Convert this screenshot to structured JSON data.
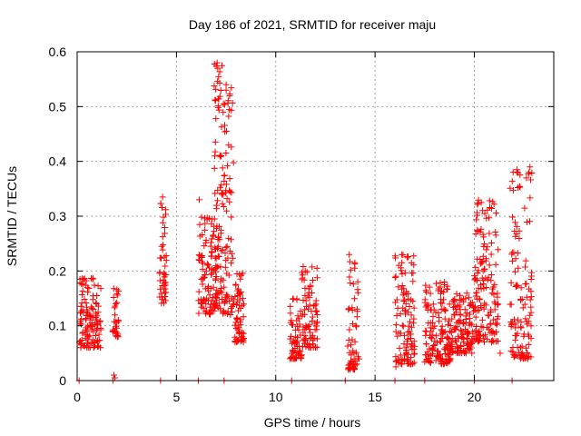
{
  "chart_data": {
    "type": "scatter",
    "title": "Day 186 of 2021, SRMTID for receiver maju",
    "xlabel": "GPS time / hours",
    "ylabel": "SRMTID / TECUs",
    "xlim": [
      0,
      24
    ],
    "ylim": [
      0,
      0.6
    ],
    "xticks": [
      "0",
      "5",
      "10",
      "15",
      "20"
    ],
    "yticks": [
      "0",
      "0.1",
      "0.2",
      "0.3",
      "0.4",
      "0.5",
      "0.6"
    ],
    "grid": true,
    "marker": "+",
    "color": "#ff0000",
    "series": [
      {
        "name": "SRMTID",
        "clusters": [
          {
            "x": [
              0.1,
              1.2
            ],
            "y": [
              0.06,
              0.19
            ],
            "n": 120
          },
          {
            "x": [
              1.75,
              2.1
            ],
            "y": [
              0.08,
              0.17
            ],
            "n": 30
          },
          {
            "x": [
              4.15,
              4.5
            ],
            "y": [
              0.14,
              0.33
            ],
            "n": 45
          },
          {
            "x": [
              6.1,
              6.9
            ],
            "y": [
              0.12,
              0.3
            ],
            "n": 90
          },
          {
            "x": [
              6.9,
              7.3
            ],
            "y": [
              0.13,
              0.58
            ],
            "n": 90
          },
          {
            "x": [
              7.3,
              7.9
            ],
            "y": [
              0.12,
              0.54
            ],
            "n": 80
          },
          {
            "x": [
              7.9,
              8.4
            ],
            "y": [
              0.07,
              0.2
            ],
            "n": 60
          },
          {
            "x": [
              10.7,
              11.3
            ],
            "y": [
              0.04,
              0.15
            ],
            "n": 60
          },
          {
            "x": [
              11.3,
              12.1
            ],
            "y": [
              0.06,
              0.21
            ],
            "n": 80
          },
          {
            "x": [
              13.6,
              14.2
            ],
            "y": [
              0.02,
              0.23
            ],
            "n": 60
          },
          {
            "x": [
              16.0,
              17.0
            ],
            "y": [
              0.03,
              0.23
            ],
            "n": 110
          },
          {
            "x": [
              17.5,
              18.8
            ],
            "y": [
              0.03,
              0.18
            ],
            "n": 150
          },
          {
            "x": [
              18.8,
              20.0
            ],
            "y": [
              0.05,
              0.16
            ],
            "n": 120
          },
          {
            "x": [
              20.0,
              21.2
            ],
            "y": [
              0.07,
              0.33
            ],
            "n": 150
          },
          {
            "x": [
              21.8,
              22.9
            ],
            "y": [
              0.04,
              0.39
            ],
            "n": 120
          }
        ],
        "spikes": [
          {
            "x": 0.2,
            "y": 0.065
          },
          {
            "x": 1.85,
            "y": 0.01
          },
          {
            "x": 1.9,
            "y": 0.005
          },
          {
            "x": 4.3,
            "y": 0.335
          },
          {
            "x": 6.15,
            "y": 0.33
          },
          {
            "x": 7.05,
            "y": 0.58
          },
          {
            "x": 7.08,
            "y": 0.57
          },
          {
            "x": 7.5,
            "y": 0.54
          },
          {
            "x": 7.5,
            "y": 0.53
          },
          {
            "x": 13.65,
            "y": 0.02
          },
          {
            "x": 13.7,
            "y": 0.23
          },
          {
            "x": 16.05,
            "y": 0.025
          },
          {
            "x": 16.35,
            "y": 0.23
          },
          {
            "x": 16.35,
            "y": 0.215
          },
          {
            "x": 20.35,
            "y": 0.325
          },
          {
            "x": 22.8,
            "y": 0.39
          },
          {
            "x": 22.75,
            "y": 0.38
          },
          {
            "x": 21.3,
            "y": 0.05
          }
        ],
        "zero_points_x": [
          0.1,
          1.8,
          4.2,
          6.1,
          7.4,
          10.8,
          13.5,
          16.0,
          17.5,
          20.0,
          21.9
        ]
      }
    ]
  }
}
